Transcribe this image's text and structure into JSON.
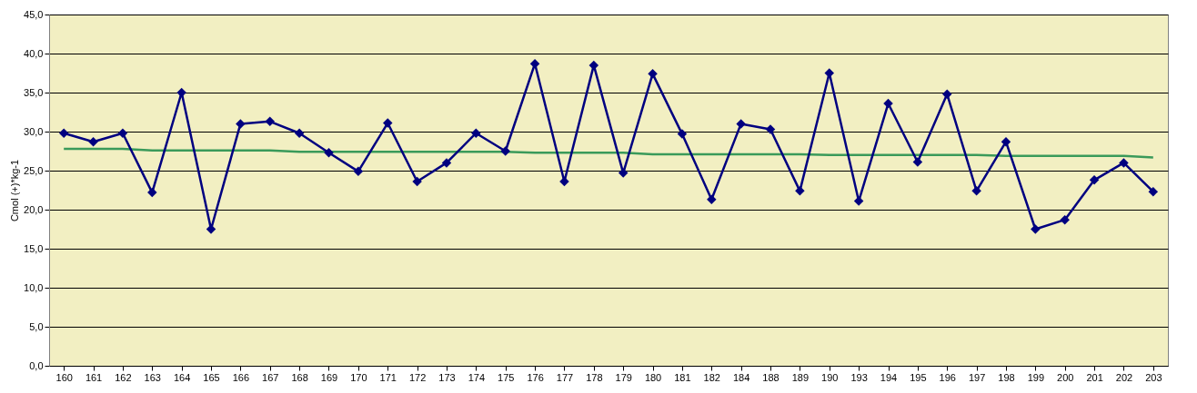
{
  "chart_data": {
    "type": "line",
    "ylabel": "Cmol (+)*kg-1",
    "categories": [
      "160",
      "161",
      "162",
      "163",
      "164",
      "165",
      "166",
      "167",
      "168",
      "169",
      "170",
      "171",
      "172",
      "173",
      "174",
      "175",
      "176",
      "177",
      "178",
      "179",
      "180",
      "181",
      "182",
      "184",
      "188",
      "189",
      "190",
      "193",
      "194",
      "195",
      "196",
      "197",
      "198",
      "199",
      "200",
      "201",
      "202",
      "203"
    ],
    "series": [
      {
        "color": "#000080",
        "marker": "diamond",
        "values": [
          29.8,
          28.7,
          29.8,
          22.2,
          35.0,
          17.5,
          31.0,
          31.3,
          29.8,
          27.3,
          24.9,
          31.1,
          23.6,
          26.0,
          29.8,
          27.5,
          38.7,
          23.6,
          38.5,
          24.7,
          37.4,
          29.7,
          21.3,
          31.0,
          30.3,
          22.4,
          37.5,
          21.1,
          33.6,
          26.1,
          34.8,
          22.4,
          28.7,
          17.5,
          18.7,
          23.8,
          26.0,
          22.3
        ]
      },
      {
        "color": "#3a9a5a",
        "marker": "none",
        "values": [
          27.8,
          27.8,
          27.8,
          27.6,
          27.6,
          27.6,
          27.6,
          27.6,
          27.4,
          27.4,
          27.4,
          27.4,
          27.4,
          27.4,
          27.4,
          27.4,
          27.3,
          27.3,
          27.3,
          27.3,
          27.1,
          27.1,
          27.1,
          27.1,
          27.1,
          27.1,
          27.0,
          27.0,
          27.0,
          27.0,
          27.0,
          27.0,
          26.9,
          26.9,
          26.9,
          26.9,
          26.9,
          26.7
        ]
      }
    ],
    "ylim": [
      0,
      45
    ],
    "yticks": [
      {
        "value": 0,
        "label": "0,0"
      },
      {
        "value": 5,
        "label": "5,0"
      },
      {
        "value": 10,
        "label": "10,0"
      },
      {
        "value": 15,
        "label": "15,0"
      },
      {
        "value": 20,
        "label": "20,0"
      },
      {
        "value": 25,
        "label": "25,0"
      },
      {
        "value": 30,
        "label": "30,0"
      },
      {
        "value": 35,
        "label": "35,0"
      },
      {
        "value": 40,
        "label": "40,0"
      },
      {
        "value": 45,
        "label": "45,0"
      }
    ],
    "grid": "y"
  }
}
